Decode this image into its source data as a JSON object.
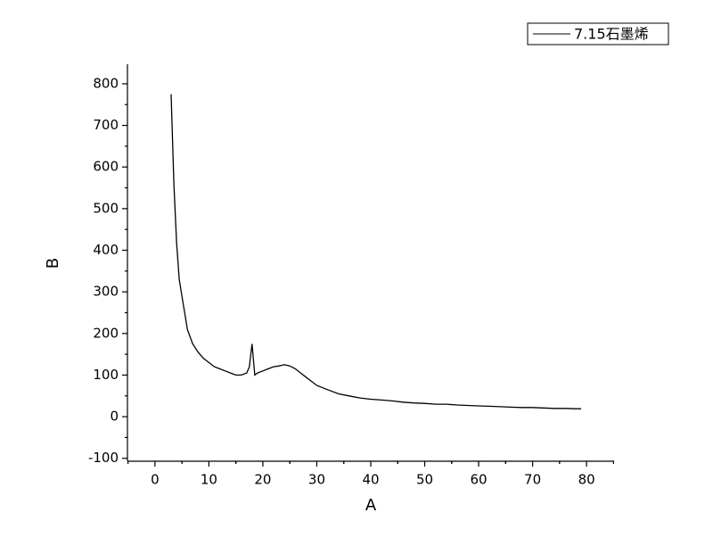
{
  "chart_data": {
    "type": "line",
    "x_label": "A",
    "y_label": "B",
    "x": [
      3,
      3.5,
      4,
      4.5,
      5,
      5.5,
      6,
      7,
      8,
      9,
      10,
      11,
      12,
      13,
      14,
      15,
      16,
      17,
      17.5,
      18,
      18.5,
      19,
      20,
      21,
      22,
      23,
      24,
      25,
      26,
      27,
      28,
      29,
      30,
      32,
      34,
      36,
      38,
      40,
      42,
      44,
      46,
      48,
      50,
      52,
      54,
      56,
      58,
      60,
      62,
      64,
      66,
      68,
      70,
      72,
      74,
      76,
      78,
      79
    ],
    "series": [
      {
        "name": "7.15石墨烯",
        "color": "#000000",
        "values": [
          775,
          560,
          420,
          330,
          290,
          250,
          210,
          175,
          155,
          140,
          130,
          120,
          115,
          110,
          105,
          100,
          100,
          105,
          120,
          175,
          100,
          105,
          110,
          115,
          120,
          122,
          125,
          122,
          115,
          105,
          95,
          85,
          75,
          65,
          55,
          50,
          45,
          42,
          40,
          38,
          35,
          33,
          32,
          30,
          30,
          28,
          27,
          26,
          25,
          24,
          23,
          22,
          22,
          21,
          20,
          20,
          19,
          19
        ]
      }
    ],
    "xlim": [
      -5.1,
      85.1
    ],
    "ylim": [
      -107,
      847
    ],
    "xticks": [
      0,
      10,
      20,
      30,
      40,
      50,
      60,
      70,
      80
    ],
    "yticks": [
      -100,
      0,
      100,
      200,
      300,
      400,
      500,
      600,
      700,
      800
    ],
    "legend": "top-right"
  }
}
